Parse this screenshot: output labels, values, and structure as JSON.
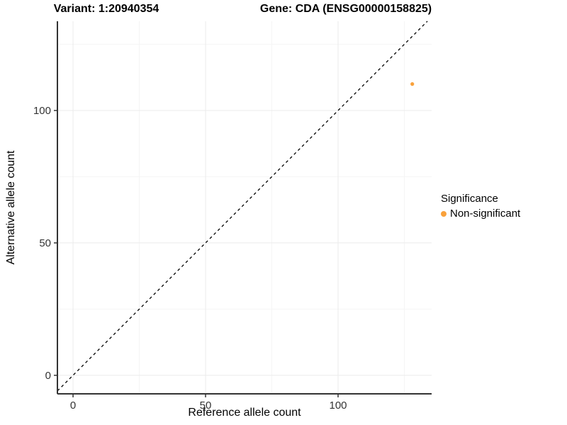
{
  "header": {
    "variant_title": "Variant: 1:20940354",
    "gene_title": "Gene: CDA (ENSG00000158825)"
  },
  "axes": {
    "x_label": "Reference allele count",
    "y_label": "Alternative allele count"
  },
  "legend": {
    "title": "Significance",
    "items": [
      {
        "label": "Non-significant",
        "color": "#F9A13B"
      }
    ]
  },
  "colors": {
    "point": "#F9A13B",
    "axis_line": "#333333",
    "tick": "#333333",
    "tick_label": "#333333",
    "grid_major": "#EBEBEB",
    "grid_minor": "#F5F5F5",
    "identity_line": "#000000",
    "background": "#FFFFFF"
  },
  "chart_data": {
    "type": "scatter",
    "title": "Variant: 1:20940354    Gene: CDA (ENSG00000158825)",
    "xlabel": "Reference allele count",
    "ylabel": "Alternative allele count",
    "xlim": [
      -5.9,
      135.3
    ],
    "ylim": [
      -7.0,
      133.7
    ],
    "x_ticks": [
      0,
      50,
      100
    ],
    "y_ticks": [
      0,
      50,
      100
    ],
    "x_minor_ticks": [
      25,
      75,
      125
    ],
    "y_minor_ticks": [
      25,
      75,
      125
    ],
    "grid": "faint major and minor gridlines on white panel",
    "points": [
      {
        "x": 128,
        "y": 110,
        "series": "Non-significant"
      }
    ],
    "reference_line": {
      "type": "identity y=x",
      "style": "dashed",
      "color": "black"
    },
    "legend": {
      "title": "Significance",
      "position": "right",
      "entries": [
        "Non-significant"
      ]
    }
  }
}
